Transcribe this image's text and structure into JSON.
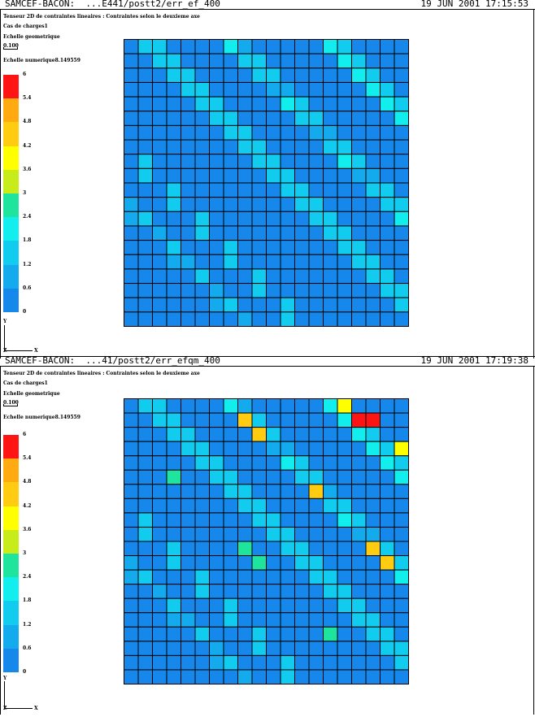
{
  "palette": [
    "#0d5ef2",
    "#1688ec",
    "#14aaee",
    "#12ccf0",
    "#12eeee",
    "#1ee49e",
    "#c8ec1a",
    "#ffff00",
    "#ffcc12",
    "#ffaa10",
    "#ff1414"
  ],
  "panels": [
    {
      "title_left": "SAMCEF-BACON:  ...E441/postt2/err_ef_400",
      "title_right": "19 JUN 2001 17:15:53",
      "subtitle": "Tenseur 2D de contraintes lineaires : Contraintes selon le deuxieme axe",
      "load_case": "Cas de charges1",
      "geo_scale_label": "Echelle geometrique",
      "geo_scale_value": "0.100",
      "num_scale_label": "Echelle numerique8.149559",
      "legend_values": [
        "6",
        "5.4",
        "4.8",
        "4.2",
        "3.6",
        "3",
        "2.4",
        "1.8",
        "1.2",
        "0.6",
        "0"
      ],
      "axis_y": "Y",
      "axis_z": "Z",
      "axis_x": "X",
      "grid": [
        "0000000000002430000034400",
        "0000000000000000000000000"
      ]
    },
    {
      "title_left": "SAMCEF-BACON:  ...41/postt2/err_efqm_400",
      "title_right": "19 JUN 2001 17:19:38",
      "subtitle": "Tenseur 2D de contraintes lineaires : Contraintes selon le deuxieme axe",
      "load_case": "Cas de charges1",
      "geo_scale_label": "Echelle geometrique",
      "geo_scale_value": "0.100",
      "num_scale_label": "Echelle numerique8.149559",
      "legend_values": [
        "6",
        "5.4",
        "4.8",
        "4.2",
        "3.6",
        "3",
        "2.4",
        "1.8",
        "1.2",
        "0.6",
        "0"
      ],
      "axis_y": "Y",
      "axis_z": "Z",
      "axis_x": "X"
    }
  ],
  "meshes": [
    [
      "00000000342000000003200",
      "00000000002000000000340",
      "00000000000000000000020",
      "30000000000230000000030",
      "00000000000000000000000"
    ]
  ]
}
